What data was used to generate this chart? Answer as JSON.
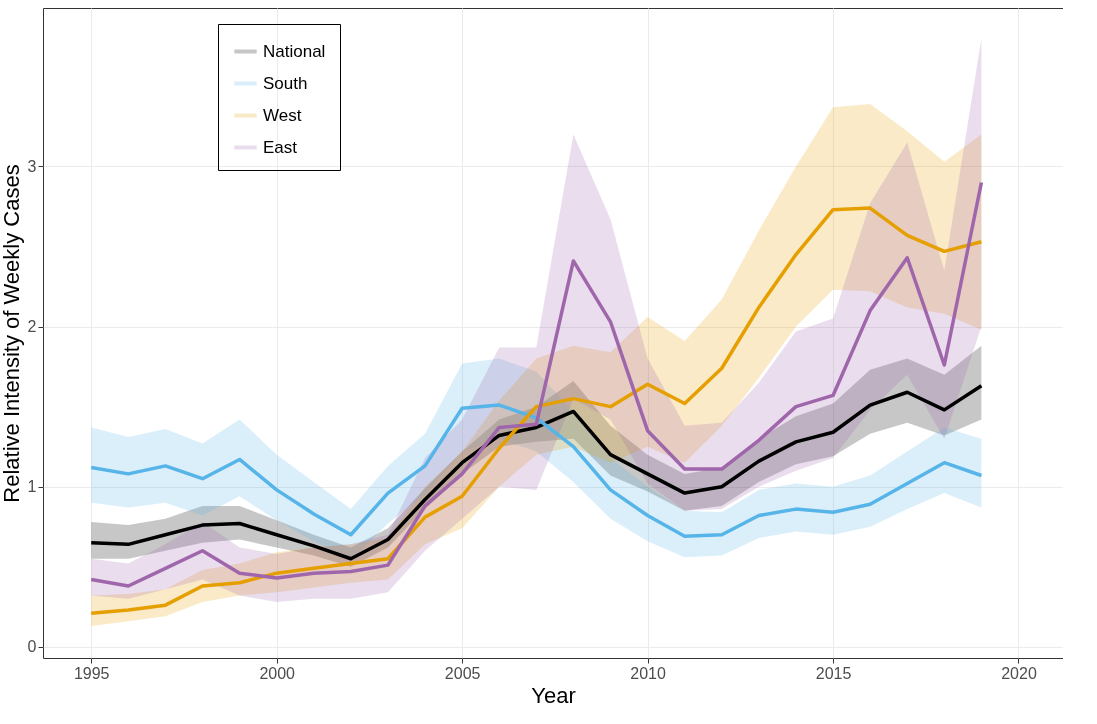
{
  "chart_data": {
    "type": "line",
    "xlabel": "Year",
    "ylabel": "Relative Intensity of Weekly Cases",
    "x": [
      1995,
      1996,
      1997,
      1998,
      1999,
      2000,
      2001,
      2002,
      2003,
      2004,
      2005,
      2006,
      2007,
      2008,
      2009,
      2010,
      2011,
      2012,
      2013,
      2014,
      2015,
      2016,
      2017,
      2018,
      2019
    ],
    "series": [
      {
        "name": "National",
        "color": "#000000",
        "values": [
          0.65,
          0.64,
          0.7,
          0.76,
          0.77,
          0.7,
          0.63,
          0.55,
          0.67,
          0.92,
          1.15,
          1.32,
          1.37,
          1.47,
          1.2,
          1.08,
          0.96,
          1.0,
          1.16,
          1.28,
          1.34,
          1.51,
          1.59,
          1.48,
          1.63
        ],
        "lower": [
          0.55,
          0.55,
          0.6,
          0.65,
          0.67,
          0.62,
          0.57,
          0.5,
          0.62,
          0.86,
          1.08,
          1.25,
          1.28,
          1.3,
          1.07,
          0.97,
          0.85,
          0.88,
          1.03,
          1.14,
          1.19,
          1.33,
          1.4,
          1.32,
          1.42
        ],
        "upper": [
          0.78,
          0.76,
          0.8,
          0.88,
          0.88,
          0.79,
          0.7,
          0.62,
          0.74,
          0.99,
          1.22,
          1.42,
          1.5,
          1.66,
          1.38,
          1.2,
          1.08,
          1.12,
          1.3,
          1.44,
          1.52,
          1.73,
          1.8,
          1.7,
          1.88
        ]
      },
      {
        "name": "South",
        "color": "#56b4e9",
        "values": [
          1.12,
          1.08,
          1.13,
          1.05,
          1.17,
          0.98,
          0.83,
          0.7,
          0.96,
          1.13,
          1.49,
          1.51,
          1.43,
          1.25,
          0.98,
          0.82,
          0.69,
          0.7,
          0.82,
          0.86,
          0.84,
          0.89,
          1.02,
          1.15,
          1.07
        ],
        "lower": [
          0.9,
          0.87,
          0.9,
          0.82,
          0.94,
          0.79,
          0.66,
          0.54,
          0.77,
          0.95,
          1.22,
          1.3,
          1.22,
          1.03,
          0.8,
          0.66,
          0.56,
          0.57,
          0.68,
          0.72,
          0.7,
          0.75,
          0.86,
          0.96,
          0.87
        ],
        "upper": [
          1.37,
          1.31,
          1.36,
          1.27,
          1.42,
          1.2,
          1.03,
          0.86,
          1.13,
          1.33,
          1.77,
          1.8,
          1.72,
          1.47,
          1.18,
          1.0,
          0.85,
          0.84,
          0.98,
          1.02,
          1.0,
          1.07,
          1.22,
          1.37,
          1.3
        ]
      },
      {
        "name": "West",
        "color": "#e69f00",
        "values": [
          0.21,
          0.23,
          0.26,
          0.38,
          0.4,
          0.46,
          0.49,
          0.52,
          0.55,
          0.81,
          0.94,
          1.24,
          1.5,
          1.55,
          1.5,
          1.64,
          1.52,
          1.74,
          2.12,
          2.45,
          2.73,
          2.74,
          2.57,
          2.47,
          2.53
        ],
        "lower": [
          0.13,
          0.16,
          0.19,
          0.28,
          0.32,
          0.34,
          0.37,
          0.4,
          0.42,
          0.64,
          0.74,
          1.0,
          1.2,
          1.25,
          1.15,
          1.25,
          1.15,
          1.38,
          1.68,
          2.0,
          2.23,
          2.22,
          2.12,
          2.08,
          1.98
        ],
        "upper": [
          0.32,
          0.33,
          0.36,
          0.48,
          0.52,
          0.59,
          0.62,
          0.64,
          0.68,
          1.0,
          1.22,
          1.54,
          1.8,
          1.88,
          1.84,
          2.06,
          1.91,
          2.17,
          2.6,
          3.0,
          3.37,
          3.39,
          3.22,
          3.03,
          3.2
        ]
      },
      {
        "name": "East",
        "color": "#a066ab",
        "values": [
          0.42,
          0.38,
          0.49,
          0.6,
          0.46,
          0.43,
          0.46,
          0.47,
          0.51,
          0.88,
          1.08,
          1.37,
          1.39,
          2.41,
          2.03,
          1.35,
          1.11,
          1.11,
          1.29,
          1.5,
          1.57,
          2.1,
          2.43,
          1.76,
          2.9
        ],
        "lower": [
          0.32,
          0.3,
          0.36,
          0.42,
          0.32,
          0.28,
          0.3,
          0.3,
          0.34,
          0.6,
          0.8,
          1.0,
          0.98,
          1.55,
          1.42,
          1.02,
          0.85,
          0.86,
          1.0,
          1.1,
          1.18,
          1.48,
          1.7,
          1.3,
          2.0
        ],
        "upper": [
          0.55,
          0.52,
          0.64,
          0.78,
          0.62,
          0.58,
          0.62,
          0.64,
          0.7,
          1.18,
          1.42,
          1.87,
          1.87,
          3.2,
          2.67,
          1.8,
          1.38,
          1.4,
          1.65,
          1.97,
          2.05,
          2.77,
          3.15,
          2.35,
          3.8
        ]
      }
    ],
    "xlim": [
      1993.7,
      2021.2
    ],
    "xticks": [
      1995,
      2000,
      2005,
      2010,
      2015,
      2020
    ],
    "ylim": [
      -0.07,
      3.99
    ],
    "yticks": [
      0,
      1,
      2,
      3
    ],
    "grid": true,
    "legend": "top left"
  }
}
